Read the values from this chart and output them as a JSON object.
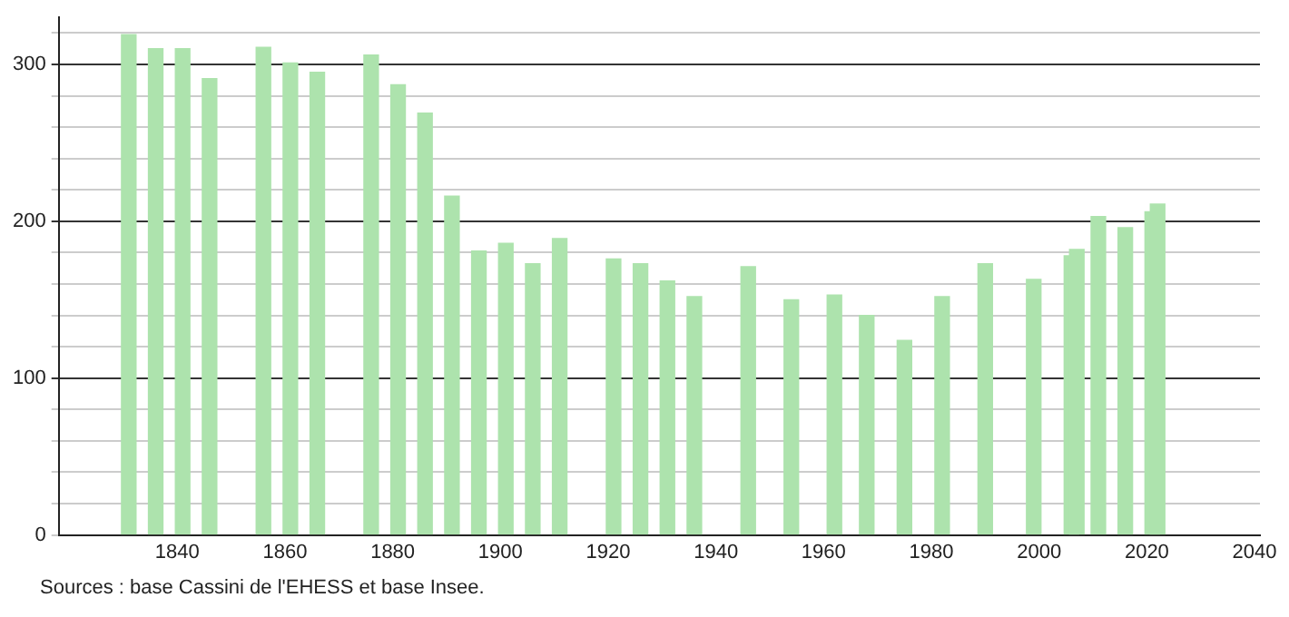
{
  "chart_data": {
    "type": "bar",
    "color": "#ade3ad",
    "x": [
      1831,
      1836,
      1841,
      1846,
      1856,
      1861,
      1866,
      1876,
      1881,
      1886,
      1891,
      1896,
      1901,
      1906,
      1911,
      1921,
      1926,
      1931,
      1936,
      1946,
      1954,
      1962,
      1968,
      1975,
      1982,
      1990,
      1999,
      2006,
      2007,
      2011,
      2016,
      2021,
      2022
    ],
    "values": [
      319,
      310,
      310,
      291,
      311,
      301,
      295,
      306,
      287,
      269,
      216,
      181,
      186,
      173,
      189,
      176,
      173,
      162,
      152,
      171,
      150,
      153,
      140,
      124,
      152,
      173,
      163,
      178,
      182,
      203,
      196,
      206,
      211
    ],
    "xlim": [
      1818,
      2041
    ],
    "xticks": [
      1840,
      1860,
      1880,
      1900,
      1920,
      1940,
      1960,
      1980,
      2000,
      2020,
      2040
    ],
    "ylim": [
      0,
      330
    ],
    "yticks": [
      0,
      {
        "value": 20,
        "label": null
      },
      {
        "value": 40,
        "label": null
      },
      {
        "value": 60,
        "label": null
      },
      {
        "value": 80,
        "label": null
      },
      100,
      {
        "value": 120,
        "label": null
      },
      {
        "value": 140,
        "label": null
      },
      {
        "value": 160,
        "label": null
      },
      {
        "value": 180,
        "label": null
      },
      200,
      {
        "value": 220,
        "label": null
      },
      {
        "value": 240,
        "label": null
      },
      {
        "value": 260,
        "label": null
      },
      {
        "value": 280,
        "label": null
      },
      300,
      {
        "value": 320,
        "label": null
      }
    ],
    "grid": "y",
    "annotations": [
      "Sources : base Cassini de l'EHESS et base Insee."
    ]
  }
}
